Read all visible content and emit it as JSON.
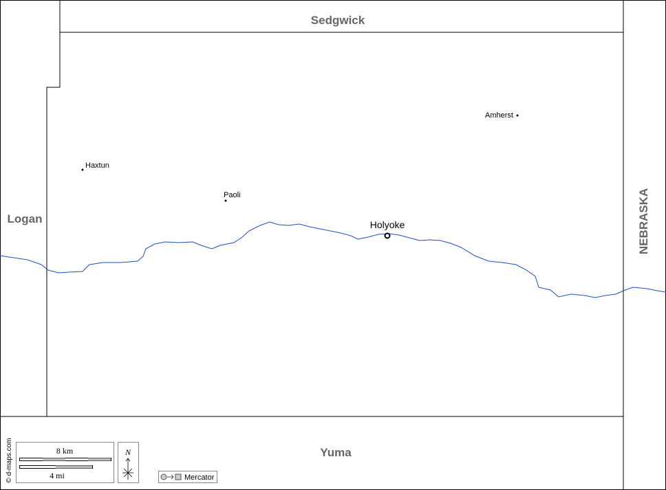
{
  "map": {
    "neighbors": {
      "north": "Sedgwick",
      "west": "Logan",
      "east": "NEBRASKA",
      "south": "Yuma"
    },
    "county_seat": "Holyoke",
    "towns": [
      "Haxtun",
      "Paoli",
      "Amherst"
    ],
    "legend": {
      "scale_km": "8 km",
      "scale_mi": "4 mi",
      "north": "N",
      "projection": "Mercator"
    },
    "credit": "© d-maps.com"
  }
}
